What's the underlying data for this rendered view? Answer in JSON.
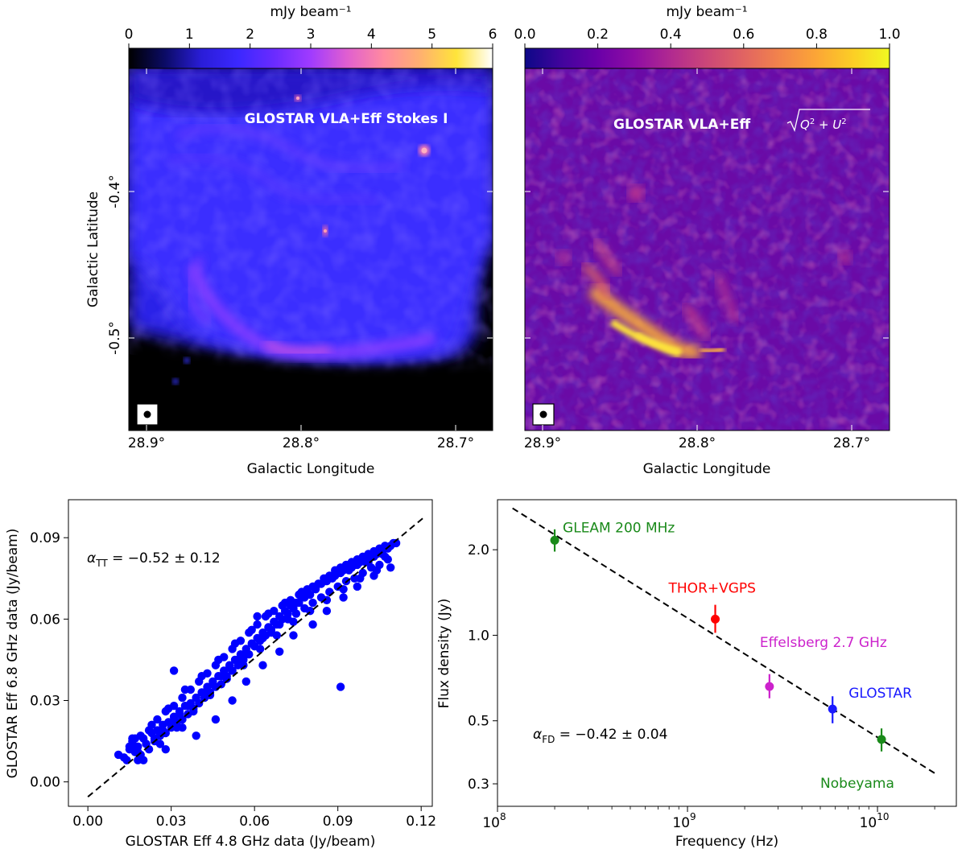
{
  "colors": {
    "stokes_i_cmap": [
      "#000000",
      "#0b0b66",
      "#2a1dd8",
      "#3b28ff",
      "#6a2bff",
      "#a03bff",
      "#e05fd0",
      "#ff8aa0",
      "#ffb070",
      "#ffe43a",
      "#ffffff"
    ],
    "pol_cmap": [
      "#0d0887",
      "#41049d",
      "#6a00a8",
      "#8f0da4",
      "#b12a90",
      "#cc4778",
      "#e16462",
      "#f2844b",
      "#fca636",
      "#fcce25",
      "#f0f921"
    ],
    "scatter_points": "#0000ff",
    "gleam": "#1a8a1a",
    "thor": "#ff0000",
    "effelsberg": "#cc22cc",
    "glostar": "#1a1aff",
    "nobeyama": "#1a8a1a"
  },
  "chart_data": [
    {
      "type": "heatmap",
      "image_label": "GLOSTAR VLA+Eff Stokes I",
      "colorbar": {
        "label": "mJy beam⁻¹",
        "range": [
          0,
          6
        ],
        "ticks": [
          "0",
          "1",
          "2",
          "3",
          "4",
          "5",
          "6"
        ]
      },
      "xlabel": "Galactic Longitude",
      "ylabel": "Galactic Latitude",
      "xticks": [
        "28.9°",
        "28.8°",
        "28.7°"
      ],
      "yticks": [
        "-0.4°",
        "-0.5°"
      ]
    },
    {
      "type": "heatmap",
      "image_label": "GLOSTAR VLA+Eff √(Q²+U²)",
      "colorbar": {
        "label": "mJy beam⁻¹",
        "range": [
          0,
          1
        ],
        "ticks": [
          "0.0",
          "0.2",
          "0.4",
          "0.6",
          "0.8",
          "1.0"
        ]
      },
      "xlabel": "Galactic Longitude",
      "xticks": [
        "28.9°",
        "28.8°",
        "28.7°"
      ]
    },
    {
      "type": "scatter",
      "xlabel": "GLOSTAR Eff 4.8 GHz data (Jy/beam)",
      "ylabel": "GLOSTAR Eff 6.8 GHz data (Jy/beam)",
      "xlim": [
        -0.007,
        0.124
      ],
      "ylim": [
        -0.009,
        0.104
      ],
      "xticks": [
        "0.00",
        "0.03",
        "0.06",
        "0.09",
        "0.12"
      ],
      "yticks": [
        "0.00",
        "0.03",
        "0.06",
        "0.09"
      ],
      "annotation": "α_TT = −0.52 ± 0.12",
      "fit_line": {
        "x": [
          0.0,
          0.121
        ],
        "y": [
          -0.0055,
          0.0975
        ]
      },
      "points": {
        "x": [
          0.011,
          0.013,
          0.015,
          0.016,
          0.017,
          0.018,
          0.019,
          0.02,
          0.021,
          0.022,
          0.023,
          0.024,
          0.025,
          0.026,
          0.027,
          0.028,
          0.029,
          0.03,
          0.031,
          0.032,
          0.033,
          0.034,
          0.035,
          0.036,
          0.037,
          0.038,
          0.039,
          0.04,
          0.041,
          0.042,
          0.043,
          0.044,
          0.045,
          0.046,
          0.047,
          0.048,
          0.049,
          0.05,
          0.051,
          0.052,
          0.053,
          0.054,
          0.055,
          0.056,
          0.057,
          0.058,
          0.059,
          0.06,
          0.061,
          0.062,
          0.063,
          0.064,
          0.065,
          0.066,
          0.067,
          0.068,
          0.069,
          0.07,
          0.071,
          0.072,
          0.073,
          0.074,
          0.075,
          0.076,
          0.077,
          0.078,
          0.079,
          0.08,
          0.081,
          0.082,
          0.083,
          0.084,
          0.085,
          0.086,
          0.087,
          0.088,
          0.089,
          0.09,
          0.091,
          0.092,
          0.093,
          0.094,
          0.095,
          0.096,
          0.097,
          0.098,
          0.099,
          0.1,
          0.101,
          0.102,
          0.103,
          0.104,
          0.105,
          0.106,
          0.107,
          0.108,
          0.109,
          0.11,
          0.111,
          0.016,
          0.019,
          0.022,
          0.025,
          0.028,
          0.031,
          0.034,
          0.037,
          0.04,
          0.043,
          0.046,
          0.049,
          0.052,
          0.055,
          0.058,
          0.061,
          0.064,
          0.067,
          0.07,
          0.073,
          0.076,
          0.079,
          0.082,
          0.085,
          0.088,
          0.091,
          0.094,
          0.097,
          0.1,
          0.103,
          0.106,
          0.014,
          0.018,
          0.021,
          0.024,
          0.027,
          0.03,
          0.033,
          0.036,
          0.039,
          0.042,
          0.045,
          0.048,
          0.051,
          0.054,
          0.057,
          0.06,
          0.063,
          0.066,
          0.069,
          0.072,
          0.075,
          0.078,
          0.081,
          0.084,
          0.087,
          0.09,
          0.093,
          0.096,
          0.099,
          0.102,
          0.105,
          0.108,
          0.02,
          0.026,
          0.032,
          0.038,
          0.044,
          0.05,
          0.056,
          0.062,
          0.068,
          0.074,
          0.08,
          0.086,
          0.092,
          0.098,
          0.104,
          0.015,
          0.017,
          0.029,
          0.035,
          0.041,
          0.047,
          0.053,
          0.059,
          0.065,
          0.071,
          0.077,
          0.083,
          0.089,
          0.095,
          0.101,
          0.107,
          0.031,
          0.061,
          0.091,
          0.016,
          0.018,
          0.023,
          0.028,
          0.034,
          0.039,
          0.046,
          0.052,
          0.057,
          0.063,
          0.069,
          0.074,
          0.081,
          0.086,
          0.092,
          0.097,
          0.103,
          0.109
        ],
        "y": [
          0.01,
          0.009,
          0.012,
          0.015,
          0.011,
          0.013,
          0.01,
          0.016,
          0.014,
          0.012,
          0.018,
          0.015,
          0.019,
          0.017,
          0.021,
          0.018,
          0.022,
          0.02,
          0.024,
          0.022,
          0.026,
          0.023,
          0.028,
          0.025,
          0.029,
          0.027,
          0.031,
          0.029,
          0.033,
          0.031,
          0.035,
          0.033,
          0.037,
          0.035,
          0.039,
          0.036,
          0.041,
          0.039,
          0.043,
          0.041,
          0.045,
          0.043,
          0.047,
          0.045,
          0.049,
          0.047,
          0.051,
          0.05,
          0.053,
          0.052,
          0.055,
          0.054,
          0.057,
          0.056,
          0.059,
          0.058,
          0.061,
          0.06,
          0.063,
          0.062,
          0.065,
          0.064,
          0.066,
          0.066,
          0.068,
          0.068,
          0.07,
          0.069,
          0.072,
          0.071,
          0.073,
          0.073,
          0.075,
          0.074,
          0.076,
          0.076,
          0.078,
          0.077,
          0.079,
          0.078,
          0.08,
          0.079,
          0.081,
          0.08,
          0.082,
          0.081,
          0.083,
          0.082,
          0.084,
          0.083,
          0.085,
          0.084,
          0.086,
          0.085,
          0.087,
          0.086,
          0.087,
          0.088,
          0.088,
          0.013,
          0.017,
          0.019,
          0.023,
          0.026,
          0.028,
          0.031,
          0.034,
          0.037,
          0.04,
          0.043,
          0.046,
          0.049,
          0.052,
          0.055,
          0.058,
          0.061,
          0.063,
          0.065,
          0.067,
          0.069,
          0.071,
          0.072,
          0.074,
          0.075,
          0.077,
          0.078,
          0.08,
          0.081,
          0.083,
          0.084,
          0.008,
          0.011,
          0.014,
          0.016,
          0.019,
          0.022,
          0.025,
          0.028,
          0.031,
          0.033,
          0.036,
          0.039,
          0.042,
          0.045,
          0.047,
          0.05,
          0.053,
          0.055,
          0.058,
          0.06,
          0.062,
          0.064,
          0.066,
          0.068,
          0.07,
          0.072,
          0.074,
          0.075,
          0.077,
          0.079,
          0.08,
          0.082,
          0.008,
          0.014,
          0.02,
          0.026,
          0.032,
          0.038,
          0.043,
          0.049,
          0.054,
          0.059,
          0.063,
          0.067,
          0.071,
          0.075,
          0.078,
          0.013,
          0.016,
          0.027,
          0.034,
          0.039,
          0.045,
          0.051,
          0.056,
          0.062,
          0.066,
          0.07,
          0.073,
          0.076,
          0.079,
          0.081,
          0.083,
          0.041,
          0.061,
          0.035,
          0.016,
          0.008,
          0.021,
          0.012,
          0.02,
          0.017,
          0.023,
          0.03,
          0.037,
          0.043,
          0.048,
          0.054,
          0.058,
          0.063,
          0.068,
          0.072,
          0.076,
          0.079
        ]
      }
    },
    {
      "type": "scatter",
      "xlabel": "Frequency (Hz)",
      "ylabel": "Flux density (Jy)",
      "xscale": "log",
      "yscale": "log",
      "xlim": [
        100000000.0,
        26000000000.0
      ],
      "ylim": [
        0.25,
        3.0
      ],
      "xticks": [
        "10",
        "10",
        "10"
      ],
      "xtick_exponents": [
        "8",
        "9",
        "10"
      ],
      "yticks": [
        "0.3",
        "0.5",
        "1.0",
        "2.0"
      ],
      "annotation": "α_FD = −0.42 ± 0.04",
      "fit_line": {
        "x": [
          120000000.0,
          20000000000.0
        ],
        "y": [
          2.8,
          0.327
        ]
      },
      "points": [
        {
          "label": "GLEAM 200 MHz",
          "x": 200000000.0,
          "y": 2.16,
          "yerr": [
            1.97,
            2.36
          ],
          "color_key": "gleam"
        },
        {
          "label": "THOR+VGPS",
          "x": 1400000000.0,
          "y": 1.14,
          "yerr": [
            1.02,
            1.28
          ],
          "color_key": "thor"
        },
        {
          "label": "Effelsberg 2.7 GHz",
          "x": 2700000000.0,
          "y": 0.66,
          "yerr": [
            0.6,
            0.73
          ],
          "color_key": "effelsberg"
        },
        {
          "label": "GLOSTAR",
          "x": 5800000000.0,
          "y": 0.55,
          "yerr": [
            0.49,
            0.61
          ],
          "color_key": "glostar"
        },
        {
          "label": "Nobeyama",
          "x": 10500000000.0,
          "y": 0.43,
          "yerr": [
            0.39,
            0.47
          ],
          "color_key": "nobeyama"
        }
      ]
    }
  ]
}
